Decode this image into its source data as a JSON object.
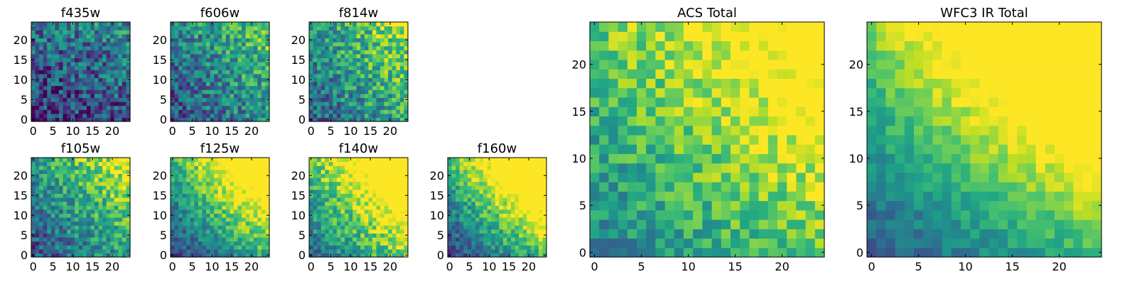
{
  "chart_data": [
    {
      "type": "heatmap",
      "title": "f435w",
      "x_ticks": [
        0,
        5,
        10,
        15,
        20
      ],
      "y_ticks": [
        0,
        5,
        10,
        15,
        20
      ],
      "xlim": [
        -0.5,
        24.5
      ],
      "ylim": [
        -0.5,
        24.5
      ],
      "grid_size": 25,
      "colormap": "viridis",
      "gradient": [
        0.15,
        0.1,
        0.2
      ],
      "noise": 0.55,
      "seed": 11
    },
    {
      "type": "heatmap",
      "title": "f606w",
      "x_ticks": [
        0,
        5,
        10,
        15,
        20
      ],
      "y_ticks": [
        0,
        5,
        10,
        15,
        20
      ],
      "xlim": [
        -0.5,
        24.5
      ],
      "ylim": [
        -0.5,
        24.5
      ],
      "grid_size": 25,
      "colormap": "viridis",
      "gradient": [
        0.25,
        0.25,
        0.18
      ],
      "noise": 0.5,
      "seed": 23
    },
    {
      "type": "heatmap",
      "title": "f814w",
      "x_ticks": [
        0,
        5,
        10,
        15,
        20
      ],
      "y_ticks": [
        0,
        5,
        10,
        15,
        20
      ],
      "xlim": [
        -0.5,
        24.5
      ],
      "ylim": [
        -0.5,
        24.5
      ],
      "grid_size": 25,
      "colormap": "viridis",
      "gradient": [
        0.3,
        0.3,
        0.2
      ],
      "noise": 0.5,
      "seed": 37
    },
    {
      "type": "heatmap",
      "title": "f105w",
      "x_ticks": [
        0,
        5,
        10,
        15,
        20
      ],
      "y_ticks": [
        0,
        5,
        10,
        15,
        20
      ],
      "xlim": [
        -0.5,
        24.5
      ],
      "ylim": [
        -0.5,
        24.5
      ],
      "grid_size": 25,
      "colormap": "viridis",
      "gradient": [
        0.25,
        0.3,
        0.28
      ],
      "noise": 0.45,
      "seed": 41
    },
    {
      "type": "heatmap",
      "title": "f125w",
      "x_ticks": [
        0,
        5,
        10,
        15,
        20
      ],
      "y_ticks": [
        0,
        5,
        10,
        15,
        20
      ],
      "xlim": [
        -0.5,
        24.5
      ],
      "ylim": [
        -0.5,
        24.5
      ],
      "grid_size": 25,
      "colormap": "viridis",
      "gradient": [
        0.2,
        0.45,
        0.45
      ],
      "noise": 0.35,
      "seed": 53
    },
    {
      "type": "heatmap",
      "title": "f140w",
      "x_ticks": [
        0,
        5,
        10,
        15,
        20
      ],
      "y_ticks": [
        0,
        5,
        10,
        15,
        20
      ],
      "xlim": [
        -0.5,
        24.5
      ],
      "ylim": [
        -0.5,
        24.5
      ],
      "grid_size": 25,
      "colormap": "viridis",
      "gradient": [
        0.35,
        0.45,
        0.4
      ],
      "noise": 0.4,
      "seed": 67
    },
    {
      "type": "heatmap",
      "title": "f160w",
      "x_ticks": [
        0,
        5,
        10,
        15,
        20
      ],
      "y_ticks": [
        0,
        5,
        10,
        15,
        20
      ],
      "xlim": [
        -0.5,
        24.5
      ],
      "ylim": [
        -0.5,
        24.5
      ],
      "grid_size": 25,
      "colormap": "viridis",
      "gradient": [
        0.2,
        0.5,
        0.5
      ],
      "noise": 0.35,
      "seed": 79
    },
    {
      "type": "heatmap",
      "title": "ACS Total",
      "x_ticks": [
        0,
        5,
        10,
        15,
        20
      ],
      "y_ticks": [
        0,
        5,
        10,
        15,
        20
      ],
      "xlim": [
        -0.5,
        24.5
      ],
      "ylim": [
        -0.5,
        24.5
      ],
      "grid_size": 25,
      "colormap": "viridis",
      "gradient": [
        0.45,
        0.3,
        0.3
      ],
      "noise": 0.35,
      "seed": 97
    },
    {
      "type": "heatmap",
      "title": "WFC3 IR Total",
      "x_ticks": [
        0,
        5,
        10,
        15,
        20
      ],
      "y_ticks": [
        0,
        5,
        10,
        15,
        20
      ],
      "xlim": [
        -0.5,
        24.5
      ],
      "ylim": [
        -0.5,
        24.5
      ],
      "grid_size": 25,
      "colormap": "viridis",
      "gradient": [
        0.28,
        0.4,
        0.55
      ],
      "noise": 0.2,
      "seed": 113
    }
  ]
}
